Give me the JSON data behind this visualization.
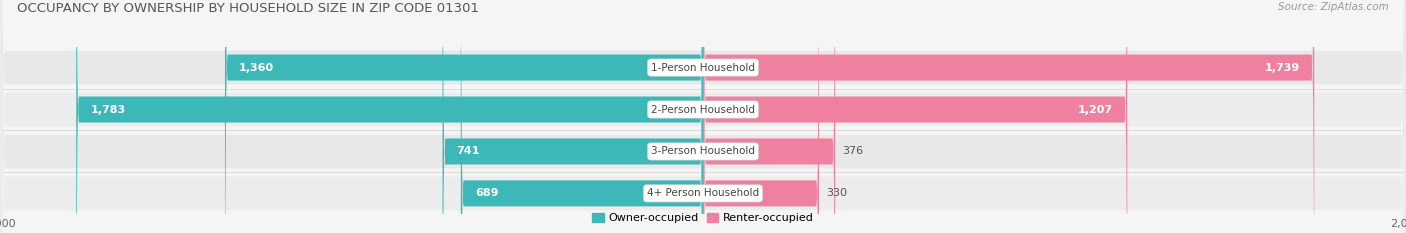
{
  "title": "OCCUPANCY BY OWNERSHIP BY HOUSEHOLD SIZE IN ZIP CODE 01301",
  "source": "Source: ZipAtlas.com",
  "categories": [
    "1-Person Household",
    "2-Person Household",
    "3-Person Household",
    "4+ Person Household"
  ],
  "owner_values": [
    1360,
    1783,
    741,
    689
  ],
  "renter_values": [
    1739,
    1207,
    376,
    330
  ],
  "max_value": 2000,
  "owner_color": "#3db8b8",
  "renter_color": "#f080a0",
  "owner_label": "Owner-occupied",
  "renter_label": "Renter-occupied",
  "background_color": "#f5f5f5",
  "row_bg_color": "#e8e8e8",
  "row_alt_color": "#ffffff",
  "title_fontsize": 9.5,
  "source_fontsize": 7.5,
  "label_fontsize": 8,
  "axis_label_fontsize": 8,
  "category_fontsize": 7.5,
  "value_inside_color": "white",
  "value_outside_color": "#555555"
}
